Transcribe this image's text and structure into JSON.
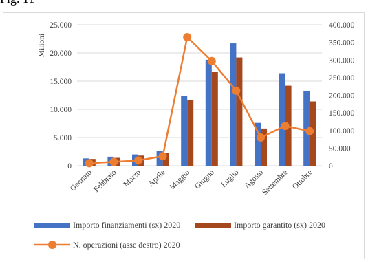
{
  "figure_label": "Fig. 11",
  "chart_data": {
    "type": "bar",
    "categories": [
      "Gennaio",
      "Febbraio",
      "Marzo",
      "Aprile",
      "Maggio",
      "Giugno",
      "Luglio",
      "Agosto",
      "Settembre",
      "Ottobre"
    ],
    "series": [
      {
        "name": "Importo finanziamenti (sx) 2020",
        "type": "bar",
        "axis": "left",
        "color": "#4472c4",
        "values": [
          1300,
          1600,
          2000,
          2600,
          12400,
          18800,
          21700,
          7600,
          16400,
          13300
        ]
      },
      {
        "name": "Importo garantito (sx) 2020",
        "type": "bar",
        "axis": "left",
        "color": "#a5481d",
        "values": [
          1200,
          1400,
          1800,
          2300,
          11600,
          16600,
          19200,
          6600,
          14200,
          11400
        ]
      },
      {
        "name": "N. operazioni (asse destro) 2020",
        "type": "line",
        "axis": "right",
        "color": "#ed7d31",
        "values": [
          7000,
          11000,
          15000,
          27000,
          365000,
          297000,
          213000,
          80000,
          113000,
          98000
        ]
      }
    ],
    "y_left": {
      "label": "Milioni",
      "ylim": [
        0,
        25000
      ],
      "ticks": [
        "0",
        "5.000",
        "10.000",
        "15.000",
        "20.000",
        "25.000"
      ]
    },
    "y_right": {
      "label": "",
      "ylim": [
        0,
        400000
      ],
      "ticks": [
        "0",
        "50.000",
        "100.000",
        "150.000",
        "200.000",
        "250.000",
        "300.000",
        "350.000",
        "400.000"
      ]
    },
    "grid": true,
    "legend_position": "bottom"
  }
}
